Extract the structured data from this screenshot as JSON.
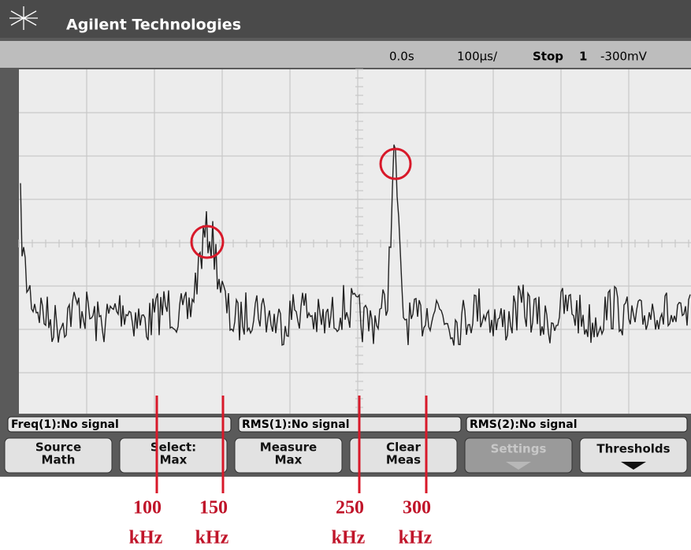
{
  "header": {
    "title": "Agilent Technologies"
  },
  "status": {
    "delay": "0.0s",
    "timebase": "100µs/",
    "run_state": "Stop",
    "trigger_source": "1",
    "trigger_level": "-300mV"
  },
  "measurements": [
    "Freq(1):No signal",
    "RMS(1):No signal",
    "RMS(2):No signal"
  ],
  "softkeys": [
    [
      "Source",
      "Math"
    ],
    [
      "Select:",
      "Max"
    ],
    [
      "Measure",
      "Max"
    ],
    [
      "Clear",
      "Meas"
    ],
    [
      "Settings"
    ],
    [
      "Thresholds"
    ]
  ],
  "annotations": [
    [
      "100",
      "kHz"
    ],
    [
      "150",
      "kHz"
    ],
    [
      "250",
      "kHz"
    ],
    [
      "300",
      "kHz"
    ]
  ]
}
